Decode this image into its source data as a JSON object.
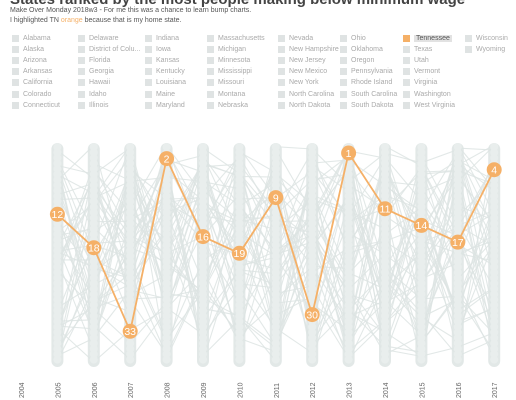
{
  "header": {
    "title": "States ranked by the most people making below minimum wage",
    "subtitle_line1": "Make Over Monday  2018w3 - For me this was a chance to learn bump charts.",
    "subtitle_line2_pre": "I highlighted TN ",
    "subtitle_line2_hl": "orange",
    "subtitle_line2_post": " because that is my home state."
  },
  "legend": {
    "columns": [
      [
        "Alabama",
        "Alaska",
        "Arizona",
        "Arkansas",
        "California",
        "Colorado",
        "Connecticut"
      ],
      [
        "Delaware",
        "District of Colu...",
        "Florida",
        "Georgia",
        "Hawaii",
        "Idaho",
        "Illinois"
      ],
      [
        "Indiana",
        "Iowa",
        "Kansas",
        "Kentucky",
        "Louisiana",
        "Maine",
        "Maryland"
      ],
      [
        "Massachusetts",
        "Michigan",
        "Minnesota",
        "Mississippi",
        "Missouri",
        "Montana",
        "Nebraska"
      ],
      [
        "Nevada",
        "New Hampshire",
        "New Jersey",
        "New Mexico",
        "New York",
        "North Carolina",
        "North Dakota"
      ],
      [
        "Ohio",
        "Oklahoma",
        "Oregon",
        "Pennsylvania",
        "Rhode Island",
        "South Carolina",
        "South Dakota"
      ],
      [
        "Tennessee",
        "Texas",
        "Utah",
        "Vermont",
        "Virginia",
        "Washington",
        "West Virginia"
      ],
      [
        "Wisconsin",
        "Wyoming"
      ]
    ],
    "selected": "Tennessee"
  },
  "colors": {
    "highlight": "#f5b067",
    "background_lines": "#dde4e3",
    "swatch": "#dfe3e3"
  },
  "chart_data": {
    "type": "line",
    "subtype": "bump",
    "x": [
      "2004",
      "2005",
      "2006",
      "2007",
      "2008",
      "2009",
      "2010",
      "2011",
      "2012",
      "2013",
      "2014",
      "2015",
      "2016",
      "2017"
    ],
    "y_inverted": true,
    "series": [
      {
        "name": "Tennessee",
        "highlighted": true,
        "values": [
          null,
          12,
          18,
          33,
          2,
          16,
          19,
          9,
          30,
          1,
          11,
          14,
          17,
          4
        ],
        "labels": [
          "",
          "12",
          "18",
          "33",
          "2",
          "16",
          "19",
          "9",
          "30",
          "1",
          "11",
          "14",
          "17",
          "4"
        ]
      }
    ]
  }
}
